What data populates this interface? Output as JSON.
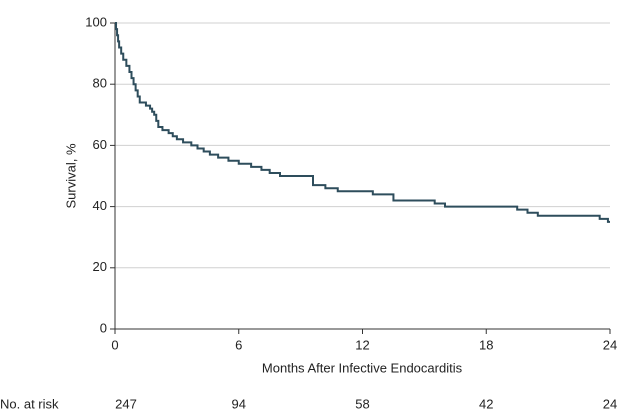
{
  "chart_data": {
    "type": "step",
    "ylabel": "Survival, %",
    "xlabel": "Months After Infective Endocarditis",
    "x": [
      0,
      0.05,
      0.1,
      0.15,
      0.2,
      0.3,
      0.4,
      0.55,
      0.7,
      0.8,
      0.9,
      1.0,
      1.1,
      1.2,
      1.5,
      1.7,
      1.8,
      1.9,
      2.0,
      2.1,
      2.3,
      2.6,
      2.8,
      3.0,
      3.3,
      3.7,
      4.0,
      4.3,
      4.6,
      5.0,
      5.5,
      6.0,
      6.6,
      7.1,
      7.5,
      8.0,
      9.6,
      10.2,
      10.8,
      12.5,
      13.5,
      15.5,
      16.0,
      18.5,
      19.5,
      20.0,
      20.5,
      23.5,
      23.9
    ],
    "values": [
      100,
      98,
      96,
      94,
      92,
      90,
      88,
      86,
      84,
      82,
      80,
      78,
      76,
      74,
      73,
      72,
      71,
      70,
      68,
      66,
      65,
      64,
      63,
      62,
      61,
      60,
      59,
      58,
      57,
      56,
      55,
      54,
      53,
      52,
      51,
      50,
      47,
      46,
      45,
      44,
      42,
      41,
      40,
      40,
      39,
      38,
      37,
      36,
      35
    ],
    "color": "#2e4d5c",
    "xlim": [
      0,
      24
    ],
    "xticks": [
      0,
      6,
      12,
      18,
      24
    ],
    "ylim": [
      0,
      100
    ],
    "yticks": [
      0,
      20,
      40,
      60,
      80,
      100
    ],
    "grid": true,
    "risk_table": {
      "label": "No. at risk",
      "values": [
        247,
        94,
        58,
        42,
        24
      ]
    }
  }
}
